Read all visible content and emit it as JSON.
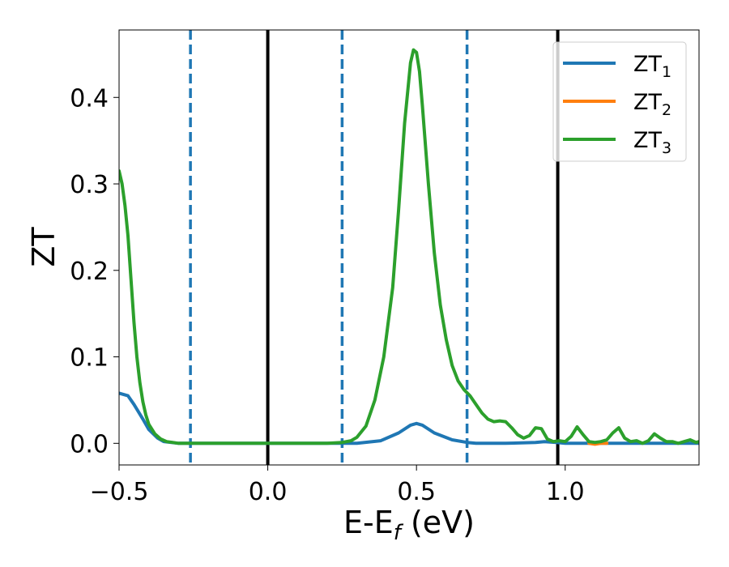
{
  "chart_data": {
    "type": "line",
    "xlabel": "E-E",
    "xlabel_sub": "f",
    "xlabel_unit": " (eV)",
    "ylabel": "ZT",
    "xlim": [
      -0.5,
      1.45
    ],
    "ylim": [
      -0.025,
      0.478
    ],
    "xticks": [
      -0.5,
      0.0,
      0.5,
      1.0
    ],
    "xtick_labels": [
      "−0.5",
      "0.0",
      "0.5",
      "1.0"
    ],
    "yticks": [
      0.0,
      0.1,
      0.2,
      0.3,
      0.4
    ],
    "ytick_labels": [
      "0.0",
      "0.1",
      "0.2",
      "0.3",
      "0.4"
    ],
    "grid": false,
    "legend_position": "top-right",
    "vlines": [
      {
        "x": -0.26,
        "style": "dashed",
        "color": "#1f77b4"
      },
      {
        "x": 0.0,
        "style": "solid",
        "color": "#000000"
      },
      {
        "x": 0.25,
        "style": "dashed",
        "color": "#1f77b4"
      },
      {
        "x": 0.67,
        "style": "dashed",
        "color": "#1f77b4"
      },
      {
        "x": 0.975,
        "style": "solid",
        "color": "#000000"
      }
    ],
    "series": [
      {
        "name": "ZT",
        "sub": "1",
        "color": "#1f77b4",
        "x": [
          -0.5,
          -0.47,
          -0.45,
          -0.42,
          -0.4,
          -0.37,
          -0.35,
          -0.3,
          -0.26,
          -0.2,
          0.0,
          0.2,
          0.3,
          0.38,
          0.44,
          0.48,
          0.5,
          0.52,
          0.56,
          0.62,
          0.67,
          0.7,
          0.8,
          0.9,
          0.93,
          0.97,
          1.0,
          1.05,
          1.1,
          1.2,
          1.3,
          1.45
        ],
        "y": [
          0.058,
          0.055,
          0.045,
          0.028,
          0.016,
          0.006,
          0.002,
          0.0,
          0.0,
          0.0,
          0.0,
          0.0,
          0.0,
          0.003,
          0.012,
          0.021,
          0.023,
          0.021,
          0.012,
          0.004,
          0.001,
          0.0,
          0.0,
          0.001,
          0.002,
          0.001,
          0.0,
          0.0,
          0.0,
          0.0,
          0.0,
          0.0
        ]
      },
      {
        "name": "ZT",
        "sub": "2",
        "color": "#ff7f0e",
        "x": [
          1.08,
          1.1,
          1.12,
          1.14
        ],
        "y": [
          0.0,
          -0.001,
          0.0,
          0.0
        ]
      },
      {
        "name": "ZT",
        "sub": "3",
        "color": "#2ca02c",
        "x": [
          -0.5,
          -0.49,
          -0.48,
          -0.47,
          -0.46,
          -0.45,
          -0.44,
          -0.43,
          -0.42,
          -0.41,
          -0.4,
          -0.38,
          -0.36,
          -0.34,
          -0.32,
          -0.3,
          -0.28,
          -0.26,
          -0.2,
          0.0,
          0.2,
          0.25,
          0.28,
          0.3,
          0.33,
          0.36,
          0.39,
          0.42,
          0.44,
          0.46,
          0.48,
          0.49,
          0.5,
          0.51,
          0.52,
          0.54,
          0.56,
          0.58,
          0.6,
          0.62,
          0.64,
          0.66,
          0.68,
          0.7,
          0.72,
          0.74,
          0.76,
          0.78,
          0.8,
          0.82,
          0.84,
          0.86,
          0.88,
          0.9,
          0.92,
          0.94,
          0.96,
          0.98,
          1.0,
          1.02,
          1.04,
          1.06,
          1.08,
          1.1,
          1.12,
          1.14,
          1.16,
          1.18,
          1.2,
          1.22,
          1.24,
          1.26,
          1.28,
          1.3,
          1.32,
          1.34,
          1.36,
          1.38,
          1.4,
          1.42,
          1.44,
          1.45
        ],
        "y": [
          0.315,
          0.3,
          0.275,
          0.24,
          0.19,
          0.14,
          0.1,
          0.07,
          0.048,
          0.033,
          0.022,
          0.011,
          0.005,
          0.002,
          0.001,
          0.0,
          0.0,
          0.0,
          0.0,
          0.0,
          0.0,
          0.001,
          0.003,
          0.007,
          0.02,
          0.05,
          0.1,
          0.18,
          0.27,
          0.37,
          0.44,
          0.455,
          0.452,
          0.43,
          0.39,
          0.3,
          0.22,
          0.16,
          0.12,
          0.09,
          0.072,
          0.062,
          0.055,
          0.045,
          0.035,
          0.028,
          0.025,
          0.026,
          0.025,
          0.018,
          0.01,
          0.006,
          0.009,
          0.018,
          0.017,
          0.005,
          0.002,
          0.003,
          0.002,
          0.008,
          0.019,
          0.01,
          0.002,
          0.001,
          0.002,
          0.004,
          0.012,
          0.018,
          0.006,
          0.002,
          0.003,
          0.0,
          0.003,
          0.011,
          0.006,
          0.002,
          0.002,
          0.0,
          0.002,
          0.004,
          0.001,
          0.002
        ]
      }
    ]
  }
}
